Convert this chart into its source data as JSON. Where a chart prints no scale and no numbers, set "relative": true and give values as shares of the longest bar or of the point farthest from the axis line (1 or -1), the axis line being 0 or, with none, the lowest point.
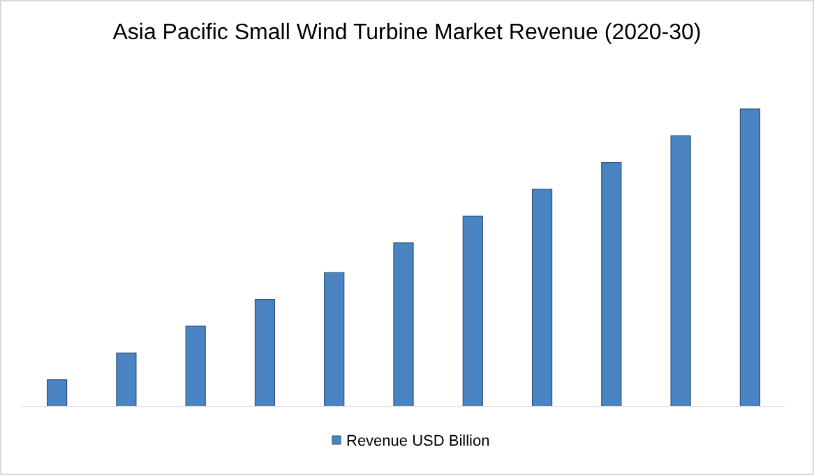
{
  "chart_data": {
    "type": "bar",
    "title": "Asia Pacific Small Wind Turbine Market Revenue (2020-30)",
    "categories": [
      null,
      null,
      null,
      null,
      null,
      null,
      null,
      null,
      null,
      null,
      null
    ],
    "relative": true,
    "series": [
      {
        "name": "Revenue USD Billion",
        "color": "#4a84c2",
        "values": [
          0.09,
          0.18,
          0.27,
          0.36,
          0.45,
          0.55,
          0.64,
          0.73,
          0.82,
          0.91,
          1.0
        ]
      }
    ],
    "legend": "bottom"
  }
}
